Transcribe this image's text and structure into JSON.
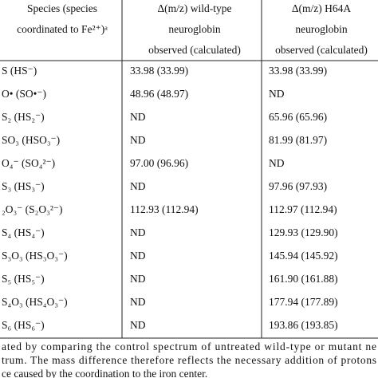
{
  "table": {
    "header": [
      [
        "Species (species",
        "coordinated to Fe²⁺)ᵃ"
      ],
      [
        "Δ(m/z) wild-type",
        "neuroglobin",
        "observed (calculated)"
      ],
      [
        "Δ(m/z) H64A",
        "neuroglobin",
        "observed (calculated)"
      ]
    ],
    "rows": [
      [
        "S (HS⁻)",
        "33.98 (33.99)",
        "33.98 (33.99)"
      ],
      [
        "O• (SO•⁻)",
        "48.96 (48.97)",
        "ND"
      ],
      [
        "S₂ (HS₂⁻)",
        "ND",
        "65.96 (65.96)"
      ],
      [
        "SO₃ (HSO₃⁻)",
        "ND",
        "81.99 (81.97)"
      ],
      [
        "O₄⁻ (SO₄²⁻)",
        "97.00 (96.96)",
        "ND"
      ],
      [
        "S₃ (HS₃⁻)",
        "ND",
        "97.96 (97.93)"
      ],
      [
        "₂O₃⁻ (S₂O₃²⁻)",
        "112.93 (112.94)",
        "112.97 (112.94)"
      ],
      [
        "S₄ (HS₄⁻)",
        "ND",
        "129.93 (129.90)"
      ],
      [
        "S₃O₃ (HS₃O₃⁻)",
        "ND",
        "145.94 (145.92)"
      ],
      [
        "S₅ (HS₅⁻)",
        "ND",
        "161.90 (161.88)"
      ],
      [
        "S₄O₃ (HS₄O₃⁻)",
        "ND",
        "177.94 (177.89)"
      ],
      [
        "S₆ (HS₆⁻)",
        "ND",
        "193.86 (193.85)"
      ]
    ],
    "footnote": [
      "ated by comparing the control spectrum of untreated wild-type or mutant ne",
      "trum. The mass difference therefore reflects the necessary addition of protons",
      "ce caused by the coordination to the iron center."
    ]
  }
}
